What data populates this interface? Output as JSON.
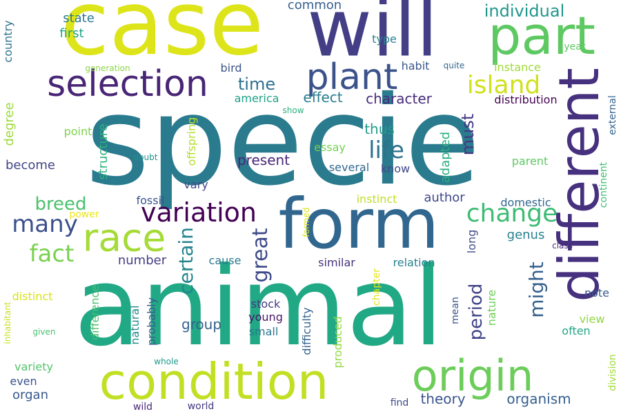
{
  "words": [
    {
      "text": "specie",
      "color": "#2a7b8e"
    },
    {
      "text": "animal",
      "color": "#21a884"
    },
    {
      "text": "case",
      "color": "#dde51a"
    },
    {
      "text": "will",
      "color": "#433e85"
    },
    {
      "text": "form",
      "color": "#31678e"
    },
    {
      "text": "different",
      "color": "#46317e"
    },
    {
      "text": "condition",
      "color": "#c2df23"
    },
    {
      "text": "part",
      "color": "#5ec962"
    },
    {
      "text": "origin",
      "color": "#6ccd5a"
    },
    {
      "text": "selection",
      "color": "#482575"
    },
    {
      "text": "plant",
      "color": "#3b528b"
    },
    {
      "text": "race",
      "color": "#a5db36"
    },
    {
      "text": "variation",
      "color": "#440154"
    },
    {
      "text": "island",
      "color": "#d0e11c"
    },
    {
      "text": "change",
      "color": "#3dbc74"
    },
    {
      "text": "life",
      "color": "#2c738e"
    },
    {
      "text": "many",
      "color": "#3c508b"
    },
    {
      "text": "fact",
      "color": "#7ad151"
    },
    {
      "text": "great",
      "color": "#3e4a89"
    },
    {
      "text": "breed",
      "color": "#4ac16d"
    },
    {
      "text": "certain",
      "color": "#25858e"
    },
    {
      "text": "might",
      "color": "#35608d"
    },
    {
      "text": "period",
      "color": "#404387"
    },
    {
      "text": "time",
      "color": "#2d708e"
    },
    {
      "text": "individual",
      "color": "#1f978b"
    },
    {
      "text": "must",
      "color": "#453882"
    },
    {
      "text": "effect",
      "color": "#287c8e"
    },
    {
      "text": "character",
      "color": "#472c7a"
    },
    {
      "text": "theory",
      "color": "#3a548c"
    },
    {
      "text": "organism",
      "color": "#355f8d"
    },
    {
      "text": "present",
      "color": "#482576"
    },
    {
      "text": "group",
      "color": "#34618d"
    },
    {
      "text": "number",
      "color": "#433d84"
    },
    {
      "text": "thus",
      "color": "#1f9e89"
    },
    {
      "text": "instinct",
      "color": "#bddf26"
    },
    {
      "text": "author",
      "color": "#3f4788"
    },
    {
      "text": "adapted",
      "color": "#29af7f"
    },
    {
      "text": "structure",
      "color": "#2db27d"
    },
    {
      "text": "state",
      "color": "#2a788e"
    },
    {
      "text": "first",
      "color": "#20a386"
    },
    {
      "text": "become",
      "color": "#414487"
    },
    {
      "text": "degree",
      "color": "#9dd93b"
    },
    {
      "text": "stock",
      "color": "#443983"
    },
    {
      "text": "parent",
      "color": "#5ec962"
    },
    {
      "text": "genus",
      "color": "#26828e"
    },
    {
      "text": "common",
      "color": "#355f8d"
    },
    {
      "text": "several",
      "color": "#31688e"
    },
    {
      "text": "natural",
      "color": "#23898e"
    },
    {
      "text": "difference",
      "color": "#48c16e"
    },
    {
      "text": "nature",
      "color": "#6ece58"
    },
    {
      "text": "distinct",
      "color": "#d8e219"
    },
    {
      "text": "variety",
      "color": "#52c569"
    },
    {
      "text": "even",
      "color": "#3b528b"
    },
    {
      "text": "organ",
      "color": "#38588c"
    },
    {
      "text": "young",
      "color": "#481668"
    },
    {
      "text": "small",
      "color": "#2a778e"
    },
    {
      "text": "similar",
      "color": "#45337d"
    },
    {
      "text": "relation",
      "color": "#27808e"
    },
    {
      "text": "distribution",
      "color": "#440154"
    },
    {
      "text": "domestic",
      "color": "#31678e"
    },
    {
      "text": "instance",
      "color": "#a0da39"
    },
    {
      "text": "view",
      "color": "#90d743"
    },
    {
      "text": "often",
      "color": "#22a785"
    },
    {
      "text": "note",
      "color": "#38588c"
    },
    {
      "text": "long",
      "color": "#3e4c8a"
    },
    {
      "text": "cause",
      "color": "#2a788e"
    },
    {
      "text": "point",
      "color": "#7fd34e"
    },
    {
      "text": "probably",
      "color": "#365c8d"
    },
    {
      "text": "difficulty",
      "color": "#33638d"
    },
    {
      "text": "produced",
      "color": "#93d741"
    },
    {
      "text": "chapter",
      "color": "#e5e419"
    },
    {
      "text": "essay",
      "color": "#75d054"
    },
    {
      "text": "know",
      "color": "#3f4889"
    },
    {
      "text": "offspring",
      "color": "#b5de2b"
    },
    {
      "text": "vary",
      "color": "#3e4989"
    },
    {
      "text": "fossil",
      "color": "#3b528b"
    },
    {
      "text": "country",
      "color": "#2c718e"
    },
    {
      "text": "type",
      "color": "#26828e"
    },
    {
      "text": "year",
      "color": "#5ec962"
    },
    {
      "text": "bird",
      "color": "#3b528b"
    },
    {
      "text": "habit",
      "color": "#39568c"
    },
    {
      "text": "quite",
      "color": "#31688e"
    },
    {
      "text": "generation",
      "color": "#8bd646"
    },
    {
      "text": "america",
      "color": "#1fa187"
    },
    {
      "text": "show",
      "color": "#2ab07f"
    },
    {
      "text": "power",
      "color": "#ebe51b"
    },
    {
      "text": "doubt",
      "color": "#21908d"
    },
    {
      "text": "continent",
      "color": "#3fbc73"
    },
    {
      "text": "external",
      "color": "#33628d"
    },
    {
      "text": "division",
      "color": "#a2da37"
    },
    {
      "text": "class",
      "color": "#482878"
    },
    {
      "text": "mean",
      "color": "#3b528b"
    },
    {
      "text": "inhabitant",
      "color": "#c8e020"
    },
    {
      "text": "given",
      "color": "#4ac16d"
    },
    {
      "text": "whole",
      "color": "#1f988b"
    },
    {
      "text": "wild",
      "color": "#482878"
    },
    {
      "text": "world",
      "color": "#453781"
    },
    {
      "text": "find",
      "color": "#3e4a89"
    },
    {
      "text": "formed",
      "color": "#dce319"
    }
  ]
}
